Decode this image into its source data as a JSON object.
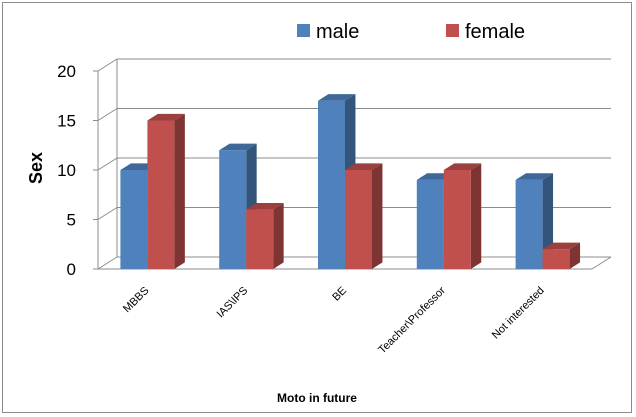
{
  "chart_data": {
    "type": "bar",
    "title": "",
    "xlabel": "Moto in future",
    "ylabel": "Sex",
    "ylim": [
      0,
      20
    ],
    "yticks": [
      "0",
      "5",
      "10",
      "15",
      "20"
    ],
    "grid": true,
    "legend_position": "top",
    "categories": [
      "MBBS",
      "IAS\\IPS",
      "BE",
      "Teacher\\Professor",
      "Not interested"
    ],
    "series": [
      {
        "name": "male",
        "values": [
          10,
          12,
          17,
          9,
          9
        ],
        "color": "#4f81bd"
      },
      {
        "name": "female",
        "values": [
          15,
          6,
          10,
          10,
          2
        ],
        "color": "#c0504d"
      }
    ]
  }
}
